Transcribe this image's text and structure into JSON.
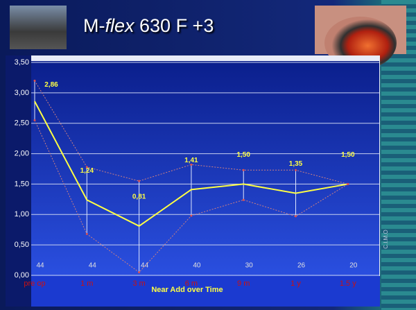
{
  "chart_data": {
    "type": "line",
    "title_prefix": "M-",
    "title_italic": "flex",
    "title_suffix": " 630 F +3",
    "xlabel": "Near Add over Time",
    "watermark": "C.I.M.O",
    "categories": [
      "pre op",
      "1 m",
      "3 m",
      "6 m",
      "9 m",
      "1 y",
      "1.5 y"
    ],
    "series": [
      {
        "color": "#ffff44",
        "values": [
          2.86,
          1.24,
          0.81,
          1.41,
          1.5,
          1.35,
          1.5
        ],
        "value_labels": [
          "2,86",
          "1,24",
          "0,81",
          "1,41",
          "1,50",
          "1,35",
          "1,50"
        ]
      },
      {
        "color": "#d08080",
        "values": [
          3.2,
          1.78,
          1.55,
          1.82,
          1.73,
          1.73,
          1.5
        ]
      },
      {
        "color": "#d08080",
        "values": [
          2.55,
          0.68,
          0.05,
          0.98,
          1.24,
          0.97,
          1.5
        ]
      }
    ],
    "counts": [
      44,
      44,
      44,
      40,
      30,
      26,
      20
    ],
    "ylim": [
      0,
      3.5
    ],
    "yticks": [
      {
        "value": 0,
        "label": "0,00"
      },
      {
        "value": 0.5,
        "label": "0,50"
      },
      {
        "value": 1,
        "label": "1,00"
      },
      {
        "value": 1.5,
        "label": "1,50"
      },
      {
        "value": 2,
        "label": "2,00"
      },
      {
        "value": 2.5,
        "label": "2,50"
      },
      {
        "value": 3,
        "label": "3,00"
      },
      {
        "value": 3.5,
        "label": "3,50"
      }
    ],
    "grid": true
  }
}
